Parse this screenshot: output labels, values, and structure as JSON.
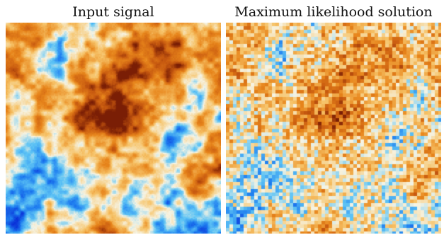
{
  "panels": [
    {
      "title": "Input signal",
      "style": "smooth"
    },
    {
      "title": "Maximum likelihood solution",
      "style": "pixelated"
    }
  ],
  "colormap": [
    "#0a2fd8",
    "#1f7ff0",
    "#5ec4f5",
    "#f6f4e4",
    "#f7c46a",
    "#e8861c",
    "#c85a10",
    "#7a1e05"
  ]
}
